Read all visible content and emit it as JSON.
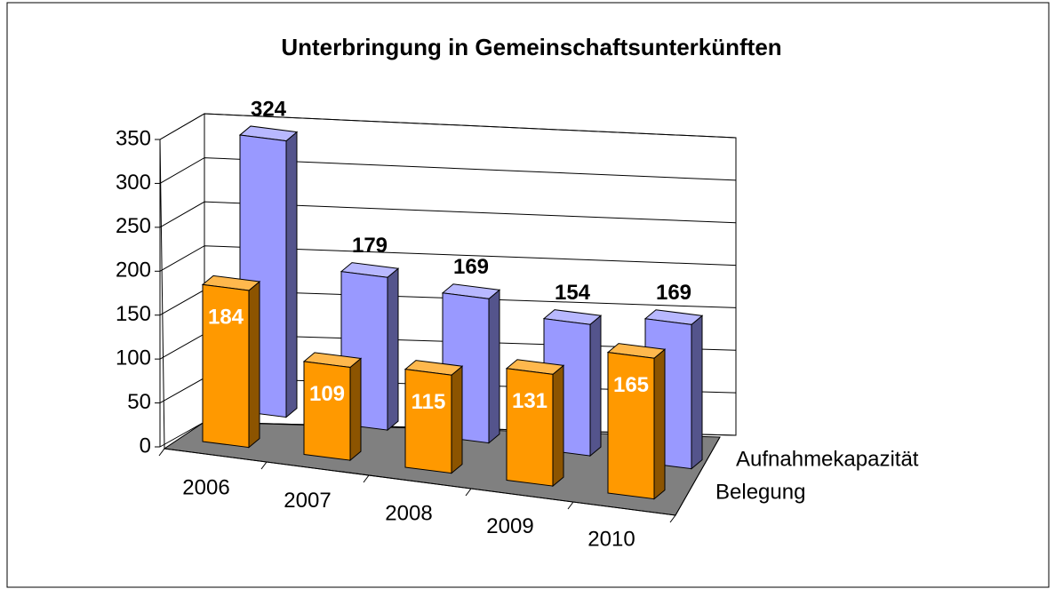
{
  "chart_data": {
    "type": "bar3d",
    "title": "Unterbringung in Gemeinschaftsunterkünften",
    "categories": [
      "2006",
      "2007",
      "2008",
      "2009",
      "2010"
    ],
    "series": [
      {
        "name": "Belegung",
        "color": "#ff9900",
        "values": [
          184,
          109,
          115,
          131,
          165
        ]
      },
      {
        "name": "Aufnahmekapazität",
        "color": "#9999ff",
        "values": [
          324,
          179,
          169,
          154,
          169
        ]
      }
    ],
    "ylim": [
      0,
      350
    ],
    "yticks": [
      0,
      50,
      100,
      150,
      200,
      250,
      300,
      350
    ],
    "grid": true
  }
}
